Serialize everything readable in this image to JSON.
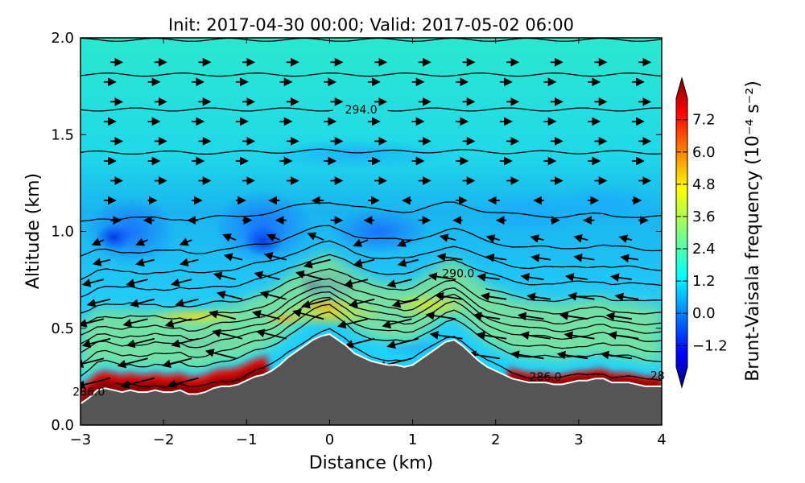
{
  "chart_data": {
    "type": "heatmap",
    "title": "Init: 2017-04-30 00:00; Valid: 2017-05-02 06:00",
    "xlabel": "Distance (km)",
    "ylabel": "Altitude (km)",
    "xlim": [
      -3,
      4
    ],
    "ylim": [
      0,
      2
    ],
    "xticks": [
      "−3",
      "−2",
      "−1",
      "0",
      "1",
      "2",
      "3",
      "4"
    ],
    "yticks": [
      "0.0",
      "0.5",
      "1.0",
      "1.5",
      "2.0"
    ],
    "colorbar": {
      "label": "Brunt-Vaisala frequency (10⁻⁴ s⁻²)",
      "range": [
        -2.0,
        8.0
      ],
      "ticks": [
        "−1.2",
        "0.0",
        "1.2",
        "2.4",
        "3.6",
        "4.8",
        "6.0",
        "7.2"
      ],
      "tick_values": [
        -1.2,
        0.0,
        1.2,
        2.4,
        3.6,
        4.8,
        6.0,
        7.2
      ],
      "colormap": "jet",
      "extend": "both"
    },
    "terrain": {
      "color": "#555555",
      "x": [
        -3.0,
        -2.9,
        -2.8,
        -2.7,
        -2.6,
        -2.5,
        -2.4,
        -2.3,
        -2.2,
        -2.1,
        -2.0,
        -1.9,
        -1.8,
        -1.7,
        -1.6,
        -1.5,
        -1.4,
        -1.3,
        -1.2,
        -1.1,
        -1.0,
        -0.9,
        -0.8,
        -0.7,
        -0.6,
        -0.5,
        -0.4,
        -0.3,
        -0.2,
        -0.1,
        0.0,
        0.1,
        0.2,
        0.3,
        0.4,
        0.5,
        0.6,
        0.7,
        0.8,
        0.9,
        1.0,
        1.1,
        1.2,
        1.3,
        1.4,
        1.5,
        1.6,
        1.7,
        1.8,
        1.9,
        2.0,
        2.1,
        2.2,
        2.3,
        2.4,
        2.5,
        2.6,
        2.7,
        2.8,
        2.9,
        3.0,
        3.1,
        3.2,
        3.3,
        3.4,
        3.5,
        3.6,
        3.7,
        3.8,
        3.9,
        4.0
      ],
      "y": [
        0.11,
        0.14,
        0.18,
        0.19,
        0.18,
        0.17,
        0.18,
        0.17,
        0.17,
        0.18,
        0.17,
        0.17,
        0.18,
        0.16,
        0.16,
        0.17,
        0.19,
        0.2,
        0.2,
        0.21,
        0.23,
        0.25,
        0.26,
        0.28,
        0.31,
        0.35,
        0.38,
        0.41,
        0.44,
        0.46,
        0.47,
        0.44,
        0.41,
        0.37,
        0.35,
        0.33,
        0.32,
        0.31,
        0.31,
        0.3,
        0.31,
        0.34,
        0.37,
        0.4,
        0.43,
        0.44,
        0.41,
        0.37,
        0.33,
        0.3,
        0.28,
        0.26,
        0.24,
        0.23,
        0.22,
        0.22,
        0.22,
        0.21,
        0.21,
        0.22,
        0.23,
        0.23,
        0.24,
        0.24,
        0.22,
        0.22,
        0.22,
        0.21,
        0.2,
        0.2,
        0.2
      ]
    },
    "theta_contours": [
      {
        "level": 286.0,
        "y_offset": 0.03,
        "label": "286.0",
        "label_x": -2.9
      },
      {
        "level": 287.0,
        "y_offset": 0.13
      },
      {
        "level": 287.5,
        "y_offset": 0.18
      },
      {
        "level": 288.0,
        "y_offset": 0.23
      },
      {
        "level": 288.5,
        "y_offset": 0.27
      },
      {
        "level": 289.0,
        "y_offset": 0.31
      },
      {
        "level": 289.5,
        "y_offset": 0.36
      },
      {
        "level": 290.0,
        "y_offset": 0.42,
        "label": "290.0",
        "label_x": 1.55
      },
      {
        "level": 290.5,
        "y_offset": 0.5
      },
      {
        "level": 291.0,
        "y_offset": 0.58
      },
      {
        "level": 291.5,
        "y_offset": 0.68
      },
      {
        "level": 292.0,
        "y_offset": 0.84
      },
      {
        "level": 293.0,
        "y_offset": 1.16
      },
      {
        "level": 294.0,
        "y_offset": 1.38,
        "label": "294.0",
        "label_x": 0.38
      },
      {
        "level": 295.0,
        "y_offset": 1.56
      },
      {
        "level": 295.5,
        "y_offset": 1.74
      },
      {
        "level": 296.0,
        "y_offset": 1.92
      }
    ],
    "ground_contour_labels": [
      {
        "text": "286.0",
        "x": 2.6,
        "y": 0.25
      },
      {
        "text": "28",
        "x": 3.95,
        "y": 0.255
      }
    ]
  }
}
